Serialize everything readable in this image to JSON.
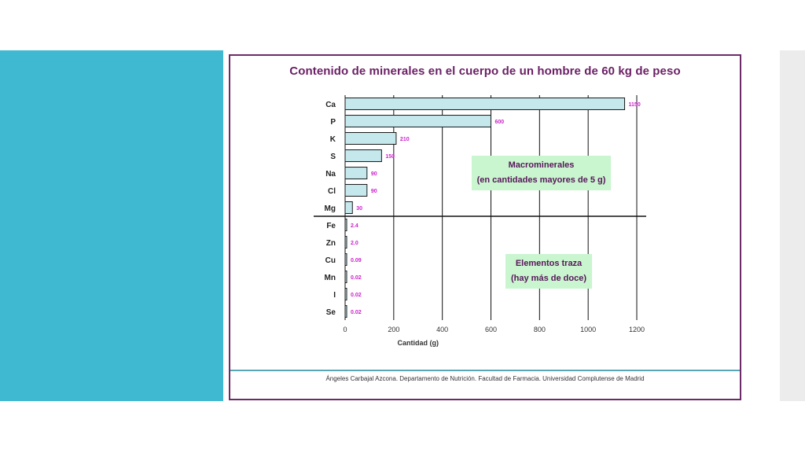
{
  "slide": {
    "title": "Contenido de minerales en el cuerpo de un hombre de 60 kg de peso",
    "credit": "Ángeles Carbajal Azcona. Departamento de Nutrición. Facultad de Farmacia. Universidad Complutense de Madrid",
    "annotations": {
      "macro_line1": "Macrominerales",
      "macro_line2": "(en cantidades mayores de 5 g)",
      "trace_line1": "Elementos traza",
      "trace_line2": "(hay más de doce)"
    }
  },
  "colors": {
    "left_band": "#3fb9d1",
    "right_band": "#ececec",
    "slide_border": "#6d2a68",
    "title": "#6b2066",
    "bar_fill": "#c4e8ec",
    "value_label": "#cc22cc",
    "annotation_bg": "#c9f5cf"
  },
  "chart_data": {
    "type": "bar",
    "orientation": "horizontal",
    "title": "Contenido de minerales en el cuerpo de un hombre de 60 kg de peso",
    "xlabel": "Cantidad  (g)",
    "ylabel": "",
    "xlim": [
      0,
      1200
    ],
    "xticks": [
      0,
      200,
      400,
      600,
      800,
      1000,
      1200
    ],
    "grid": true,
    "categories": [
      "Ca",
      "P",
      "K",
      "S",
      "Na",
      "Cl",
      "Mg",
      "Fe",
      "Zn",
      "Cu",
      "Mn",
      "I",
      "Se"
    ],
    "values": [
      1150,
      600,
      210,
      150,
      90,
      90,
      30,
      2.4,
      2.0,
      0.09,
      0.02,
      0.02,
      0.02
    ],
    "value_labels": [
      "1150",
      "600",
      "210",
      "150",
      "90",
      "90",
      "30",
      "2.4",
      "2.0",
      "0.09",
      "0.02",
      "0.02",
      "0.02"
    ],
    "separator_after_category": "Mg"
  }
}
